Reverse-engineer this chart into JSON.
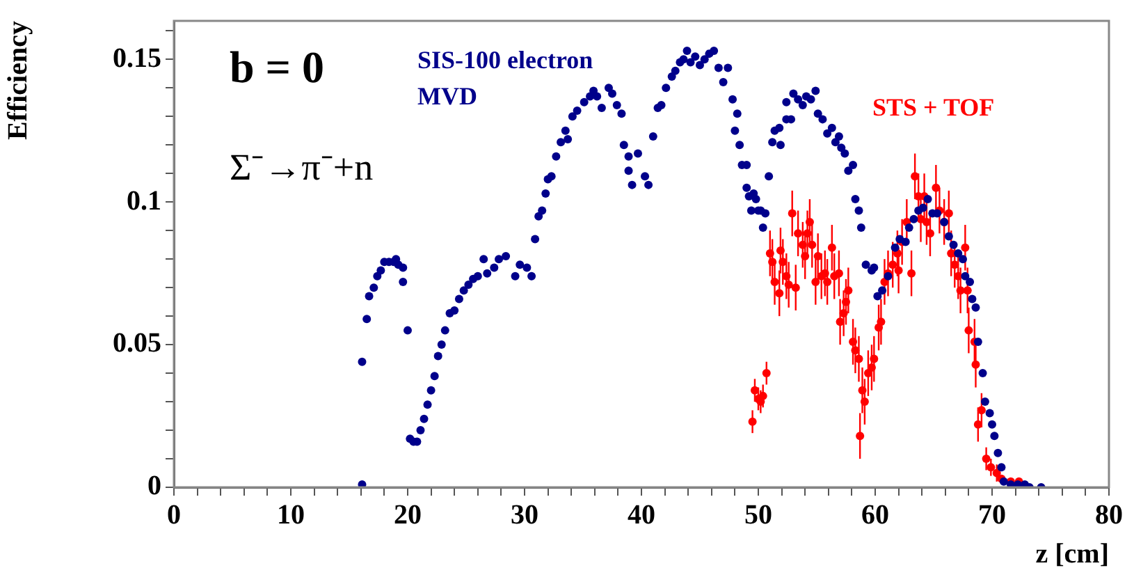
{
  "chart_data": {
    "type": "scatter",
    "xlabel": "z [cm]",
    "ylabel": "Efficiency",
    "xlim": [
      0,
      80
    ],
    "ylim": [
      0,
      0.1635
    ],
    "xticks": [
      0,
      {
        "value": 2,
        "label": null
      },
      {
        "value": 4,
        "label": null
      },
      {
        "value": 6,
        "label": null
      },
      {
        "value": 8,
        "label": null
      },
      10,
      {
        "value": 12,
        "label": null
      },
      {
        "value": 14,
        "label": null
      },
      {
        "value": 16,
        "label": null
      },
      {
        "value": 18,
        "label": null
      },
      20,
      {
        "value": 22,
        "label": null
      },
      {
        "value": 24,
        "label": null
      },
      {
        "value": 26,
        "label": null
      },
      {
        "value": 28,
        "label": null
      },
      30,
      {
        "value": 32,
        "label": null
      },
      {
        "value": 34,
        "label": null
      },
      {
        "value": 36,
        "label": null
      },
      {
        "value": 38,
        "label": null
      },
      40,
      {
        "value": 42,
        "label": null
      },
      {
        "value": 44,
        "label": null
      },
      {
        "value": 46,
        "label": null
      },
      {
        "value": 48,
        "label": null
      },
      50,
      {
        "value": 52,
        "label": null
      },
      {
        "value": 54,
        "label": null
      },
      {
        "value": 56,
        "label": null
      },
      {
        "value": 58,
        "label": null
      },
      60,
      {
        "value": 62,
        "label": null
      },
      {
        "value": 64,
        "label": null
      },
      {
        "value": 66,
        "label": null
      },
      {
        "value": 68,
        "label": null
      },
      70,
      {
        "value": 72,
        "label": null
      },
      {
        "value": 74,
        "label": null
      },
      {
        "value": 76,
        "label": null
      },
      {
        "value": 78,
        "label": null
      },
      80
    ],
    "yticks": [
      0,
      {
        "value": 0.01,
        "label": null
      },
      {
        "value": 0.02,
        "label": null
      },
      {
        "value": 0.03,
        "label": null
      },
      {
        "value": 0.04,
        "label": null
      },
      0.05,
      {
        "value": 0.06,
        "label": null
      },
      {
        "value": 0.07,
        "label": null
      },
      {
        "value": 0.08,
        "label": null
      },
      {
        "value": 0.09,
        "label": null
      },
      0.1,
      {
        "value": 0.11,
        "label": null
      },
      {
        "value": 0.12,
        "label": null
      },
      {
        "value": 0.13,
        "label": null
      },
      {
        "value": 0.14,
        "label": null
      },
      0.15,
      {
        "value": 0.16,
        "label": null
      }
    ],
    "grid": false,
    "legend": false,
    "marker": "circle",
    "annotations": [
      "b = 0",
      "Σ⁻→π⁻+n"
    ],
    "series": [
      {
        "name": "SIS-100 electron MVD",
        "color": "#00008b",
        "x": [
          16.1,
          16.1,
          16.5,
          16.7,
          17.1,
          17.4,
          17.7,
          18.0,
          18.4,
          18.8,
          19.0,
          19.2,
          19.6,
          19.6,
          20.0,
          20.2,
          20.5,
          20.8,
          21.1,
          21.4,
          21.7,
          22.0,
          22.3,
          22.6,
          22.9,
          23.2,
          23.6,
          24.0,
          24.4,
          24.8,
          25.2,
          25.6,
          26.0,
          26.5,
          26.8,
          27.4,
          27.8,
          28.4,
          29.2,
          29.6,
          30.2,
          30.6,
          30.9,
          31.2,
          31.5,
          31.8,
          32.0,
          32.3,
          32.7,
          33.1,
          33.5,
          33.7,
          34.1,
          34.5,
          35.1,
          35.6,
          35.9,
          36.2,
          36.6,
          37.2,
          37.5,
          37.9,
          38.3,
          38.5,
          38.9,
          38.9,
          39.2,
          39.7,
          40.3,
          40.6,
          41.0,
          41.4,
          41.7,
          42.1,
          42.6,
          42.9,
          43.3,
          43.6,
          43.9,
          44.2,
          44.6,
          45.0,
          45.4,
          45.8,
          46.2,
          46.6,
          47.0,
          47.4,
          47.8,
          48.0,
          48.2,
          48.4,
          48.6,
          49.0,
          49.0,
          49.2,
          49.4,
          49.6,
          49.8,
          50.0,
          50.2,
          50.4,
          50.6,
          50.9,
          51.2,
          51.4,
          51.8,
          51.9,
          52.4,
          52.4,
          52.8,
          53.0,
          53.4,
          53.8,
          54.1,
          54.5,
          54.9,
          55.1,
          55.5,
          55.9,
          56.3,
          56.6,
          56.9,
          57.1,
          57.4,
          57.7,
          58.1,
          58.3,
          58.6,
          58.8,
          59.2,
          59.7,
          59.9,
          60.2,
          60.6,
          61.1,
          61.7,
          62.1,
          62.6,
          62.9,
          63.3,
          63.7,
          64.1,
          64.5,
          64.9,
          65.3,
          65.9,
          66.3,
          66.7,
          67.1,
          67.5,
          67.7,
          68.1,
          68.3,
          68.6,
          68.8,
          69.2,
          69.4,
          69.8,
          70.0,
          70.2,
          70.5,
          70.8,
          71.0,
          71.6,
          72.2,
          72.8,
          73.2,
          74.2
        ],
        "values": [
          0.001,
          0.044,
          0.059,
          0.067,
          0.07,
          0.074,
          0.076,
          0.079,
          0.079,
          0.079,
          0.08,
          0.078,
          0.077,
          0.072,
          0.055,
          0.017,
          0.016,
          0.016,
          0.02,
          0.024,
          0.029,
          0.034,
          0.039,
          0.046,
          0.05,
          0.055,
          0.061,
          0.062,
          0.066,
          0.069,
          0.071,
          0.073,
          0.074,
          0.08,
          0.075,
          0.077,
          0.08,
          0.081,
          0.074,
          0.078,
          0.077,
          0.074,
          0.087,
          0.095,
          0.097,
          0.103,
          0.108,
          0.109,
          0.116,
          0.121,
          0.125,
          0.122,
          0.13,
          0.132,
          0.135,
          0.137,
          0.139,
          0.137,
          0.133,
          0.14,
          0.138,
          0.134,
          0.131,
          0.12,
          0.116,
          0.111,
          0.106,
          0.117,
          0.109,
          0.106,
          0.123,
          0.133,
          0.134,
          0.14,
          0.144,
          0.146,
          0.149,
          0.15,
          0.153,
          0.149,
          0.151,
          0.148,
          0.15,
          0.152,
          0.153,
          0.147,
          0.142,
          0.147,
          0.136,
          0.125,
          0.131,
          0.12,
          0.113,
          0.113,
          0.105,
          0.102,
          0.097,
          0.103,
          0.101,
          0.097,
          0.097,
          0.091,
          0.096,
          0.109,
          0.121,
          0.125,
          0.126,
          0.12,
          0.129,
          0.135,
          0.129,
          0.138,
          0.136,
          0.134,
          0.137,
          0.136,
          0.139,
          0.131,
          0.129,
          0.124,
          0.126,
          0.121,
          0.123,
          0.119,
          0.117,
          0.111,
          0.113,
          0.101,
          0.097,
          0.091,
          0.078,
          0.076,
          0.077,
          0.067,
          0.069,
          0.074,
          0.084,
          0.087,
          0.086,
          0.091,
          0.094,
          0.097,
          0.098,
          0.101,
          0.096,
          0.096,
          0.093,
          0.088,
          0.085,
          0.082,
          0.08,
          0.074,
          0.072,
          0.066,
          0.063,
          0.051,
          0.04,
          0.03,
          0.026,
          0.022,
          0.018,
          0.012,
          0.007,
          0.002,
          0.001,
          0.001,
          0.001,
          0,
          0
        ]
      },
      {
        "name": "STS + TOF",
        "color": "#ff0000",
        "x": [
          49.5,
          49.7,
          50.0,
          50.2,
          50.4,
          50.7,
          51.0,
          51.2,
          51.4,
          51.8,
          51.9,
          52.1,
          52.4,
          52.6,
          52.9,
          53.2,
          53.4,
          53.8,
          54.0,
          54.2,
          54.4,
          54.6,
          54.9,
          55.1,
          55.4,
          55.7,
          55.9,
          56.3,
          56.5,
          56.9,
          57.0,
          57.3,
          57.5,
          57.7,
          58.1,
          58.3,
          58.6,
          58.7,
          58.9,
          59.1,
          59.4,
          59.7,
          59.9,
          60.3,
          60.5,
          60.8,
          61.1,
          61.5,
          61.9,
          62.0,
          62.3,
          62.7,
          63.1,
          63.4,
          63.7,
          63.9,
          64.2,
          64.4,
          64.7,
          65.2,
          65.5,
          65.9,
          66.3,
          66.5,
          66.8,
          67.1,
          67.3,
          67.7,
          67.9,
          68.0,
          68.5,
          68.6,
          68.8,
          69.1,
          69.5,
          69.9,
          70.4,
          70.8,
          71.6,
          72.3
        ],
        "values": [
          0.023,
          0.034,
          0.031,
          0.03,
          0.032,
          0.04,
          0.082,
          0.079,
          0.072,
          0.068,
          0.083,
          0.079,
          0.074,
          0.071,
          0.096,
          0.07,
          0.089,
          0.085,
          0.081,
          0.089,
          0.093,
          0.085,
          0.072,
          0.081,
          0.074,
          0.075,
          0.072,
          0.084,
          0.074,
          0.075,
          0.058,
          0.061,
          0.065,
          0.069,
          0.051,
          0.048,
          0.045,
          0.018,
          0.034,
          0.03,
          0.04,
          0.042,
          0.045,
          0.056,
          0.058,
          0.072,
          0.075,
          0.078,
          0.082,
          0.076,
          0.086,
          0.093,
          0.075,
          0.109,
          0.102,
          0.094,
          0.102,
          0.093,
          0.089,
          0.105,
          0.097,
          0.093,
          0.096,
          0.082,
          0.078,
          0.074,
          0.069,
          0.084,
          0.069,
          0.055,
          0.051,
          0.043,
          0.022,
          0.027,
          0.01,
          0.007,
          0.005,
          0.003,
          0.002,
          0.002
        ],
        "errors": [
          0.004,
          0.004,
          0.004,
          0.004,
          0.004,
          0.004,
          0.008,
          0.008,
          0.008,
          0.008,
          0.008,
          0.008,
          0.008,
          0.008,
          0.008,
          0.008,
          0.008,
          0.008,
          0.008,
          0.008,
          0.008,
          0.008,
          0.008,
          0.008,
          0.008,
          0.008,
          0.008,
          0.008,
          0.008,
          0.008,
          0.008,
          0.008,
          0.008,
          0.008,
          0.008,
          0.008,
          0.008,
          0.008,
          0.008,
          0.008,
          0.008,
          0.008,
          0.008,
          0.008,
          0.008,
          0.008,
          0.008,
          0.008,
          0.008,
          0.008,
          0.008,
          0.008,
          0.008,
          0.008,
          0.008,
          0.008,
          0.008,
          0.008,
          0.008,
          0.008,
          0.008,
          0.008,
          0.008,
          0.008,
          0.008,
          0.008,
          0.008,
          0.008,
          0.008,
          0.008,
          0.008,
          0.008,
          0.006,
          0.006,
          0.004,
          0.003,
          0.003,
          null,
          null,
          null
        ]
      }
    ]
  }
}
